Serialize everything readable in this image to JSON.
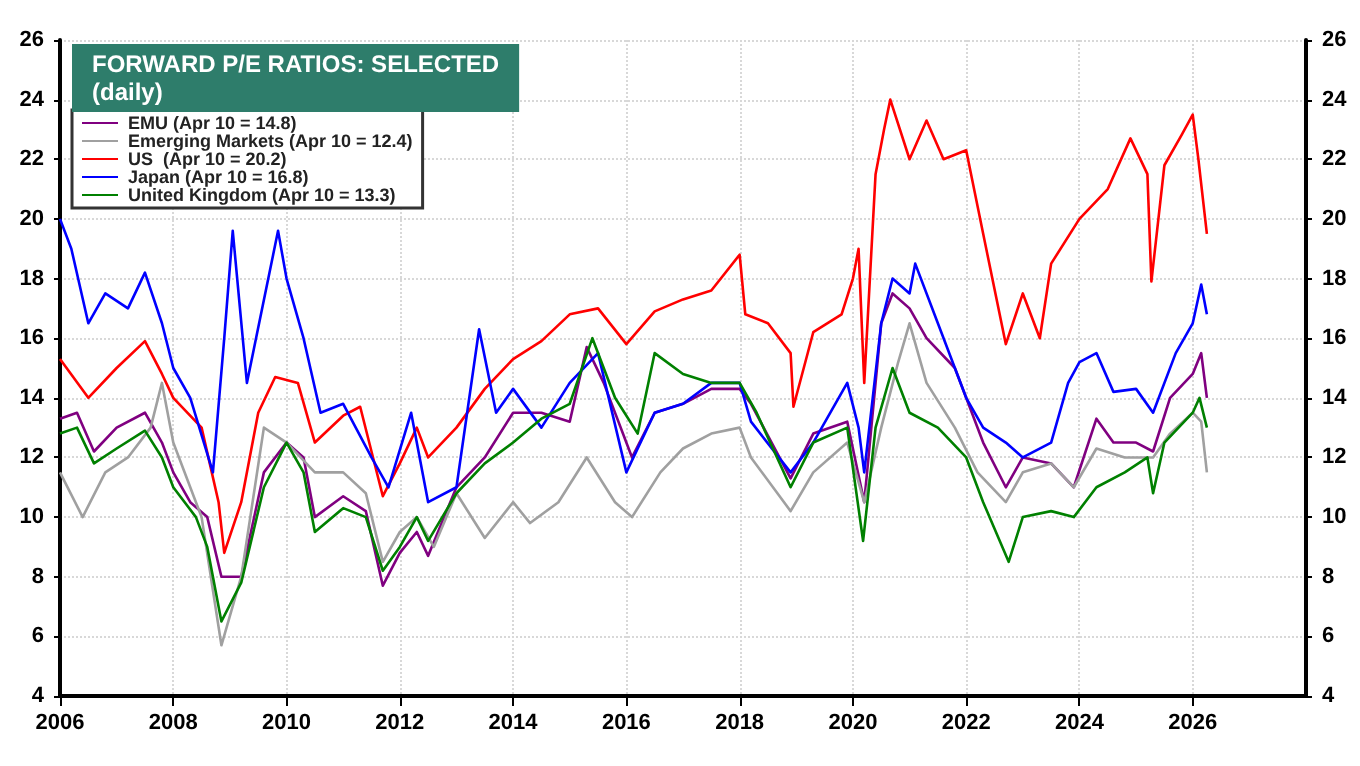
{
  "chart_data": {
    "type": "line",
    "title": "FORWARD P/E RATIOS: SELECTED",
    "subtitle": "(daily)",
    "xlim": [
      2006,
      2028
    ],
    "xticks": [
      2006,
      2008,
      2010,
      2012,
      2014,
      2016,
      2018,
      2020,
      2022,
      2024,
      2026
    ],
    "ylim": [
      4,
      26
    ],
    "yticks": [
      4,
      6,
      8,
      10,
      12,
      14,
      16,
      18,
      20,
      22,
      24,
      26
    ],
    "y2lim": [
      4,
      26
    ],
    "y2ticks": [
      4,
      6,
      8,
      10,
      12,
      14,
      16,
      18,
      20,
      22,
      24,
      26
    ],
    "grid": true,
    "legend": "top left",
    "marker": "none",
    "line_style": "solid",
    "series": [
      {
        "name": "EMU (Apr 10 = 14.8)",
        "color": "#800080",
        "x": [
          2006.0,
          2006.3,
          2006.6,
          2007.0,
          2007.5,
          2007.8,
          2008.0,
          2008.3,
          2008.6,
          2008.85,
          2009.2,
          2009.6,
          2010.0,
          2010.3,
          2010.5,
          2011.0,
          2011.4,
          2011.7,
          2012.0,
          2012.3,
          2012.5,
          2013.0,
          2013.5,
          2014.0,
          2014.5,
          2015.0,
          2015.3,
          2015.6,
          2016.1,
          2016.5,
          2017.0,
          2017.5,
          2018.0,
          2018.2,
          2018.9,
          2019.3,
          2019.9,
          2020.2,
          2020.5,
          2020.7,
          2021.0,
          2021.3,
          2021.8,
          2022.3,
          2022.7,
          2023.0,
          2023.5,
          2023.9,
          2024.3,
          2024.6,
          2025.0,
          2025.3,
          2025.6,
          2026.0,
          2026.15,
          2026.25
        ],
        "values": [
          13.3,
          13.5,
          12.2,
          13.0,
          13.5,
          12.5,
          11.5,
          10.5,
          10.0,
          8.0,
          8.0,
          11.5,
          12.5,
          12.0,
          10.0,
          10.7,
          10.2,
          7.7,
          8.8,
          9.5,
          8.7,
          11.0,
          12.0,
          13.5,
          13.5,
          13.2,
          15.7,
          14.5,
          12.0,
          13.5,
          13.8,
          14.3,
          14.3,
          13.8,
          11.3,
          12.8,
          13.2,
          10.5,
          16.5,
          17.5,
          17.0,
          16.0,
          15.0,
          12.5,
          11.0,
          12.0,
          11.8,
          11.0,
          13.3,
          12.5,
          12.5,
          12.2,
          14.0,
          14.8,
          15.5,
          14.0
        ]
      },
      {
        "name": "Emerging Markets (Apr 10 = 12.4)",
        "color": "#a0a0a0",
        "x": [
          2006.0,
          2006.4,
          2006.8,
          2007.2,
          2007.6,
          2007.8,
          2008.0,
          2008.5,
          2008.85,
          2009.2,
          2009.6,
          2010.0,
          2010.5,
          2011.0,
          2011.4,
          2011.7,
          2012.0,
          2012.3,
          2012.6,
          2013.0,
          2013.5,
          2014.0,
          2014.3,
          2014.8,
          2015.3,
          2015.8,
          2016.1,
          2016.6,
          2017.0,
          2017.5,
          2018.0,
          2018.2,
          2018.9,
          2019.3,
          2019.9,
          2020.2,
          2020.5,
          2020.8,
          2021.0,
          2021.3,
          2021.8,
          2022.2,
          2022.7,
          2023.0,
          2023.5,
          2023.9,
          2024.3,
          2024.8,
          2025.3,
          2025.6,
          2026.0,
          2026.15,
          2026.25
        ],
        "values": [
          11.5,
          10.0,
          11.5,
          12.0,
          13.0,
          14.5,
          12.5,
          10.0,
          5.7,
          8.0,
          13.0,
          12.5,
          11.5,
          11.5,
          10.8,
          8.5,
          9.5,
          10.0,
          9.0,
          10.8,
          9.3,
          10.5,
          9.8,
          10.5,
          12.0,
          10.5,
          10.0,
          11.5,
          12.3,
          12.8,
          13.0,
          12.0,
          10.2,
          11.5,
          12.5,
          10.5,
          13.0,
          15.2,
          16.5,
          14.5,
          13.0,
          11.5,
          10.5,
          11.5,
          11.8,
          11.0,
          12.3,
          12.0,
          12.0,
          12.8,
          13.5,
          13.2,
          11.5
        ]
      },
      {
        "name": "US  (Apr 10 = 20.2)",
        "color": "#ff0000",
        "x": [
          2006.0,
          2006.5,
          2007.0,
          2007.5,
          2007.8,
          2008.0,
          2008.5,
          2008.8,
          2008.9,
          2009.2,
          2009.5,
          2009.8,
          2010.2,
          2010.5,
          2011.0,
          2011.3,
          2011.7,
          2012.0,
          2012.3,
          2012.5,
          2013.0,
          2013.5,
          2014.0,
          2014.5,
          2015.0,
          2015.5,
          2016.0,
          2016.5,
          2017.0,
          2017.5,
          2018.0,
          2018.1,
          2018.5,
          2018.9,
          2018.95,
          2019.3,
          2019.8,
          2020.0,
          2020.1,
          2020.2,
          2020.4,
          2020.55,
          2020.66,
          2021.0,
          2021.3,
          2021.6,
          2022.0,
          2022.3,
          2022.7,
          2023.0,
          2023.3,
          2023.5,
          2024.0,
          2024.5,
          2024.9,
          2025.2,
          2025.27,
          2025.5,
          2025.8,
          2026.0,
          2026.1,
          2026.25
        ],
        "values": [
          15.3,
          14.0,
          15.0,
          15.9,
          14.8,
          14.0,
          13.0,
          10.5,
          8.8,
          10.5,
          13.5,
          14.7,
          14.5,
          12.5,
          13.4,
          13.7,
          10.7,
          11.8,
          13.0,
          12.0,
          13.0,
          14.3,
          15.3,
          15.9,
          16.8,
          17.0,
          15.8,
          16.9,
          17.3,
          17.6,
          18.8,
          16.8,
          16.5,
          15.5,
          13.7,
          16.2,
          16.8,
          18.0,
          19.0,
          14.5,
          21.5,
          23.0,
          24.0,
          22.0,
          23.3,
          22.0,
          22.3,
          19.5,
          15.8,
          17.5,
          16.0,
          18.5,
          20.0,
          21.0,
          22.7,
          21.5,
          17.9,
          21.8,
          22.8,
          23.5,
          22.0,
          19.5
        ]
      },
      {
        "name": "Japan (Apr 10 = 16.8)",
        "color": "#0000ff",
        "x": [
          2006.0,
          2006.2,
          2006.5,
          2006.8,
          2007.2,
          2007.5,
          2007.8,
          2008.0,
          2008.3,
          2008.7,
          2008.9,
          2009.05,
          2009.3,
          2009.85,
          2010.0,
          2010.3,
          2010.6,
          2011.0,
          2011.5,
          2011.8,
          2012.2,
          2012.5,
          2013.0,
          2013.4,
          2013.7,
          2014.0,
          2014.5,
          2015.0,
          2015.5,
          2016.0,
          2016.5,
          2017.0,
          2017.5,
          2018.0,
          2018.2,
          2018.9,
          2019.3,
          2019.9,
          2020.1,
          2020.2,
          2020.5,
          2020.7,
          2021.0,
          2021.1,
          2021.5,
          2022.0,
          2022.3,
          2022.7,
          2023.0,
          2023.5,
          2023.8,
          2024.0,
          2024.3,
          2024.6,
          2025.0,
          2025.3,
          2025.7,
          2026.0,
          2026.15,
          2026.25
        ],
        "values": [
          20.0,
          19.0,
          16.5,
          17.5,
          17.0,
          18.2,
          16.5,
          15.0,
          14.0,
          11.5,
          16.0,
          19.6,
          14.5,
          19.6,
          18.0,
          16.0,
          13.5,
          13.8,
          12.0,
          11.0,
          13.5,
          10.5,
          11.0,
          16.3,
          13.5,
          14.3,
          13.0,
          14.5,
          15.5,
          11.5,
          13.5,
          13.8,
          14.5,
          14.5,
          13.2,
          11.5,
          12.5,
          14.5,
          13.0,
          11.5,
          16.5,
          18.0,
          17.5,
          18.5,
          16.5,
          14.0,
          13.0,
          12.5,
          12.0,
          12.5,
          14.5,
          15.2,
          15.5,
          14.2,
          14.3,
          13.5,
          15.5,
          16.5,
          17.8,
          16.8
        ]
      },
      {
        "name": "United Kingdom (Apr 10 = 13.3)",
        "color": "#008000",
        "x": [
          2006.0,
          2006.3,
          2006.6,
          2007.0,
          2007.5,
          2007.8,
          2008.0,
          2008.4,
          2008.6,
          2008.85,
          2009.2,
          2009.6,
          2010.0,
          2010.3,
          2010.5,
          2011.0,
          2011.4,
          2011.7,
          2012.0,
          2012.3,
          2012.5,
          2013.0,
          2013.5,
          2014.0,
          2014.5,
          2015.0,
          2015.4,
          2015.8,
          2016.2,
          2016.5,
          2017.0,
          2017.5,
          2018.0,
          2018.3,
          2018.9,
          2019.3,
          2019.9,
          2020.18,
          2020.4,
          2020.7,
          2021.0,
          2021.5,
          2022.0,
          2022.3,
          2022.75,
          2023.0,
          2023.5,
          2023.9,
          2024.3,
          2024.8,
          2025.2,
          2025.3,
          2025.5,
          2026.0,
          2026.12,
          2026.25
        ],
        "values": [
          12.8,
          13.0,
          11.8,
          12.3,
          12.9,
          12.0,
          11.0,
          10.0,
          9.0,
          6.5,
          7.8,
          11.0,
          12.5,
          11.5,
          9.5,
          10.3,
          10.0,
          8.2,
          9.0,
          10.0,
          9.2,
          10.8,
          11.8,
          12.5,
          13.3,
          13.8,
          16.0,
          14.0,
          12.8,
          15.5,
          14.8,
          14.5,
          14.5,
          13.5,
          11.0,
          12.5,
          13.0,
          9.2,
          13.0,
          15.0,
          13.5,
          13.0,
          12.0,
          10.5,
          8.5,
          10.0,
          10.2,
          10.0,
          11.0,
          11.5,
          12.0,
          10.8,
          12.5,
          13.5,
          14.0,
          13.0
        ]
      }
    ]
  }
}
